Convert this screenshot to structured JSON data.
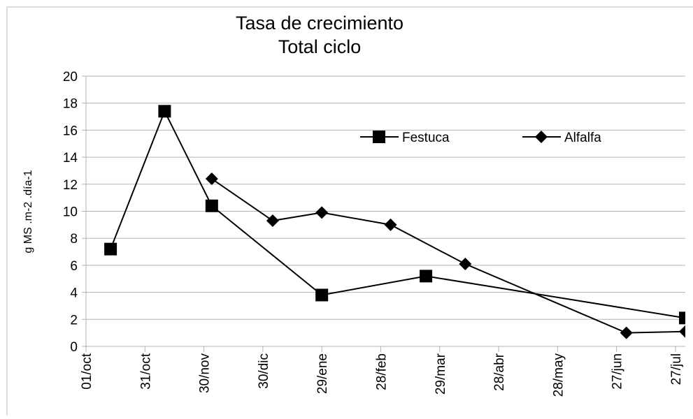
{
  "chart_data": {
    "type": "line",
    "title": "Tasa de crecimiento",
    "subtitle": "Total ciclo",
    "y_label": "g MS .m-2 .día-1",
    "series": [
      {
        "name": "Festuca",
        "color": "#000000",
        "marker": "square",
        "x": [
          12.5,
          40,
          64,
          120,
          173,
          305
        ],
        "values": [
          7.2,
          17.4,
          10.4,
          3.8,
          5.2,
          2.1
        ]
      },
      {
        "name": "Alfalfa",
        "color": "#000000",
        "marker": "diamond",
        "x": [
          64,
          95,
          120,
          155,
          193,
          275,
          305
        ],
        "values": [
          12.4,
          9.3,
          9.9,
          9.0,
          6.1,
          1.0,
          1.1
        ]
      }
    ],
    "xlim": [
      0,
      305
    ],
    "xticks": [
      {
        "value": 0,
        "label": "01/oct"
      },
      {
        "value": 30,
        "label": "31/oct"
      },
      {
        "value": 60,
        "label": "30/nov"
      },
      {
        "value": 90,
        "label": "30/dic"
      },
      {
        "value": 120,
        "label": "29/ene"
      },
      {
        "value": 150,
        "label": "28/feb"
      },
      {
        "value": 180,
        "label": "29/mar"
      },
      {
        "value": 210,
        "label": "28/abr"
      },
      {
        "value": 240,
        "label": "28/may"
      },
      {
        "value": 270,
        "label": "27/jun"
      },
      {
        "value": 300,
        "label": "27/jul"
      }
    ],
    "ylim": [
      0,
      20
    ],
    "yticks": [
      0,
      2,
      4,
      6,
      8,
      10,
      12,
      14,
      16,
      18,
      20
    ],
    "grid": true,
    "legend": "top"
  }
}
